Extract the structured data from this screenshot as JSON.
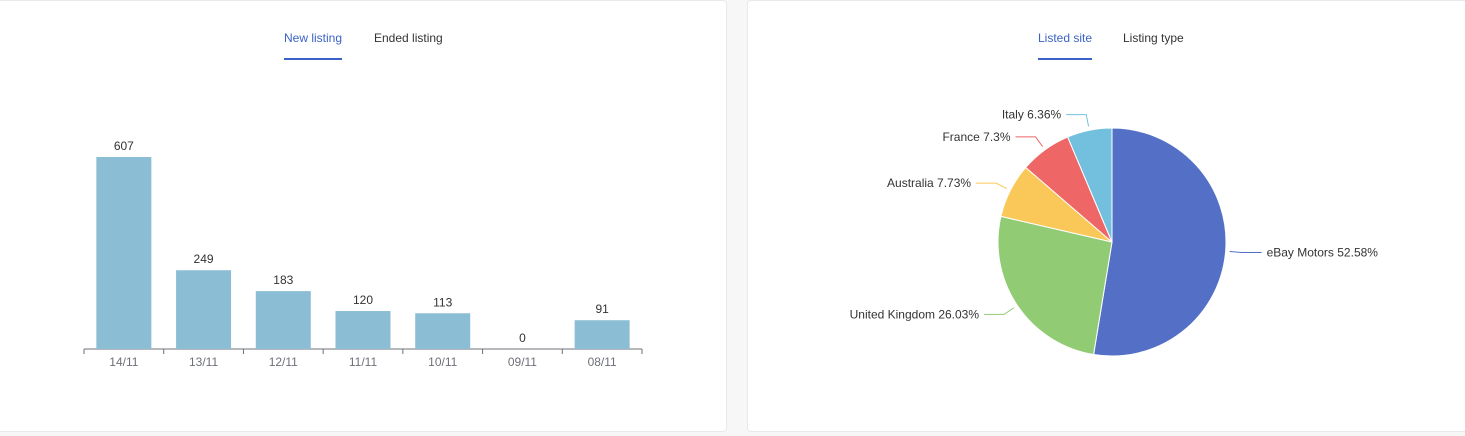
{
  "bar_panel": {
    "tabs": [
      {
        "label": "New listing",
        "active": true
      },
      {
        "label": "Ended listing",
        "active": false
      }
    ]
  },
  "pie_panel": {
    "tabs": [
      {
        "label": "Listed site",
        "active": true
      },
      {
        "label": "Listing type",
        "active": false
      }
    ]
  },
  "colors": {
    "accent": "#3a62c6",
    "bar": "#8bbdd5",
    "axis": "#6e7079",
    "pie": [
      "#5470c6",
      "#91cc75",
      "#fac858",
      "#ee6666",
      "#73c0de"
    ]
  },
  "chart_data": [
    {
      "type": "bar",
      "categories": [
        "14/11",
        "13/11",
        "12/11",
        "11/11",
        "10/11",
        "09/11",
        "08/11"
      ],
      "values": [
        607,
        249,
        183,
        120,
        113,
        0,
        91
      ],
      "title": "",
      "xlabel": "",
      "ylabel": "",
      "ylim": [
        0,
        607
      ],
      "grid": false,
      "data_labels": true
    },
    {
      "type": "pie",
      "categories": [
        "eBay Motors",
        "United Kingdom",
        "Australia",
        "France",
        "Italy"
      ],
      "values": [
        52.58,
        26.03,
        7.73,
        7.3,
        6.36
      ],
      "labels": [
        "eBay Motors 52.58%",
        "United Kingdom 26.03%",
        "Australia 7.73%",
        "France 7.3%",
        "Italy 6.36%"
      ],
      "title": ""
    }
  ]
}
